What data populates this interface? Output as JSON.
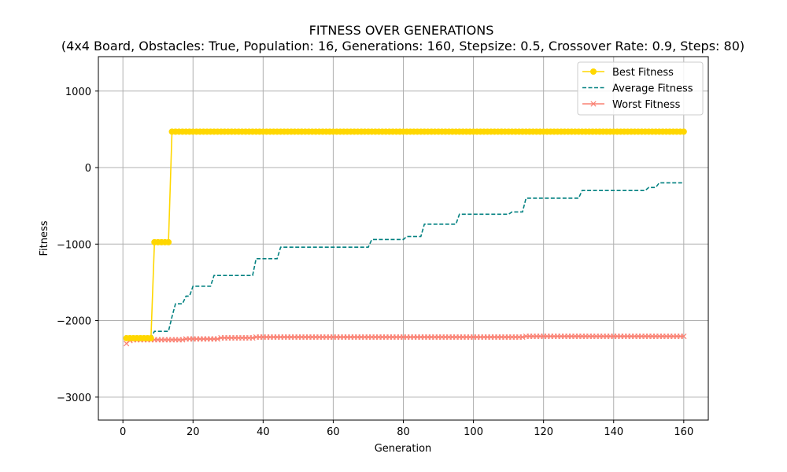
{
  "chart_data": {
    "type": "line",
    "title": "FITNESS OVER GENERATIONS",
    "subtitle": "(4x4 Board, Obstacles: True, Population: 16, Generations: 160, Stepsize: 0.5, Crossover Rate: 0.9, Steps: 80)",
    "xlabel": "Generation",
    "ylabel": "Fitness",
    "xlim": [
      -7,
      167
    ],
    "ylim": [
      -3300,
      1450
    ],
    "xticks": [
      0,
      20,
      40,
      60,
      80,
      100,
      120,
      140,
      160
    ],
    "yticks": [
      -3000,
      -2000,
      -1000,
      0,
      1000
    ],
    "grid": true,
    "legend": "top-right",
    "series": [
      {
        "name": "Best Fitness",
        "color": "#FFD700",
        "style": "solid",
        "marker": "circle",
        "steps": [
          [
            1,
            8,
            -2230
          ],
          [
            9,
            13,
            -975
          ],
          [
            14,
            160,
            470
          ]
        ]
      },
      {
        "name": "Average Fitness",
        "color": "#008080",
        "style": "dashed",
        "marker": "none",
        "steps": [
          [
            1,
            2,
            -2240
          ],
          [
            3,
            8,
            -2220
          ],
          [
            9,
            13,
            -2140
          ],
          [
            14,
            14,
            -1950
          ],
          [
            15,
            17,
            -1780
          ],
          [
            18,
            19,
            -1680
          ],
          [
            20,
            25,
            -1550
          ],
          [
            26,
            37,
            -1410
          ],
          [
            38,
            44,
            -1190
          ],
          [
            45,
            70,
            -1040
          ],
          [
            71,
            80,
            -940
          ],
          [
            81,
            85,
            -900
          ],
          [
            86,
            95,
            -740
          ],
          [
            96,
            110,
            -610
          ],
          [
            111,
            114,
            -580
          ],
          [
            115,
            130,
            -400
          ],
          [
            131,
            149,
            -300
          ],
          [
            150,
            152,
            -260
          ],
          [
            153,
            160,
            -200
          ]
        ]
      },
      {
        "name": "Worst Fitness",
        "color": "#FA8072",
        "style": "solid",
        "marker": "x",
        "steps": [
          [
            1,
            1,
            -2300
          ],
          [
            2,
            2,
            -2260
          ],
          [
            3,
            17,
            -2250
          ],
          [
            18,
            27,
            -2240
          ],
          [
            28,
            37,
            -2225
          ],
          [
            38,
            114,
            -2215
          ],
          [
            115,
            160,
            -2205
          ]
        ]
      }
    ]
  }
}
